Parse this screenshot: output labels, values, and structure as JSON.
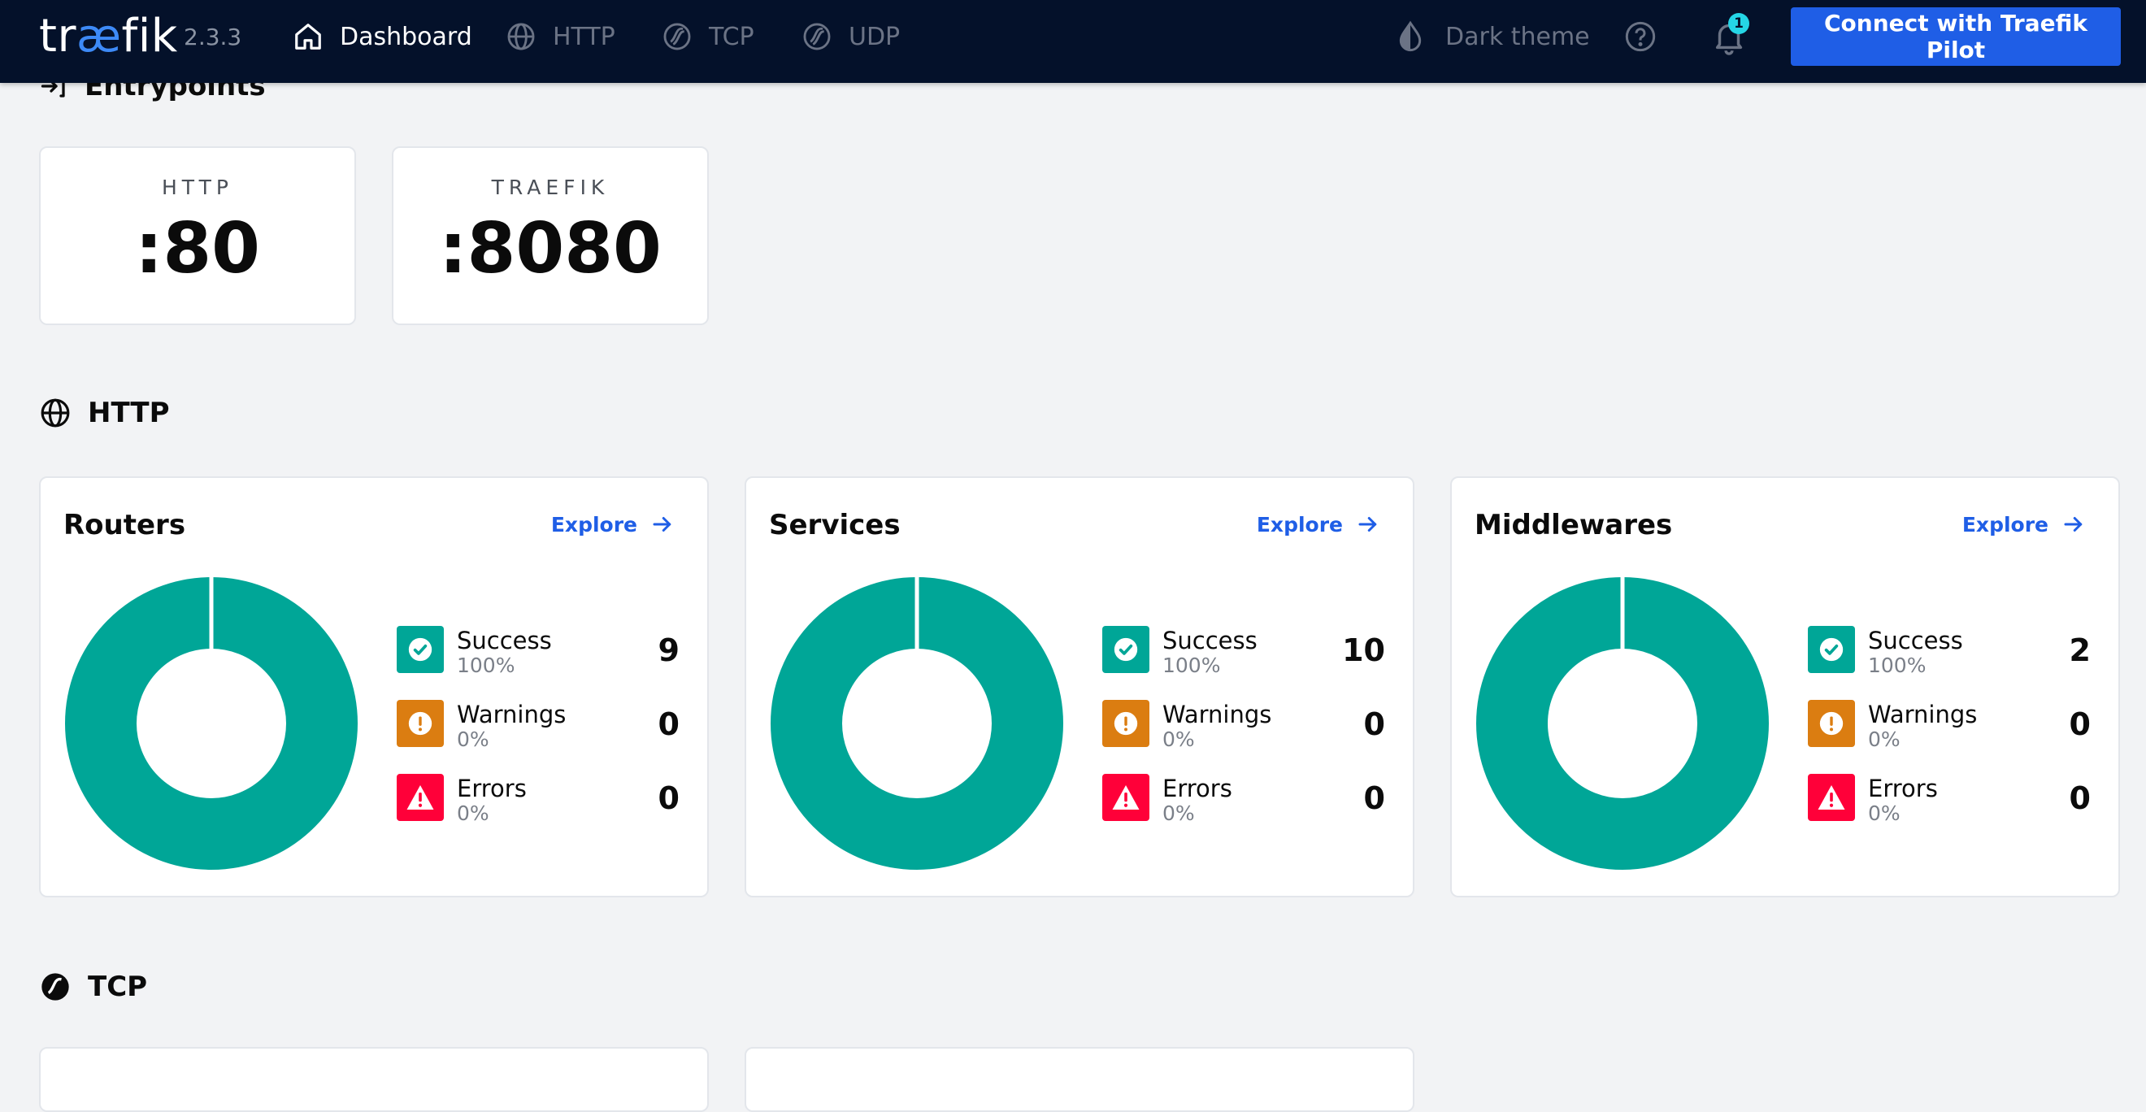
{
  "header": {
    "logo_prefix": "tr",
    "logo_ae": "æ",
    "logo_suffix": "fik",
    "version": "2.3.3",
    "nav": {
      "dashboard": "Dashboard",
      "http": "HTTP",
      "tcp": "TCP",
      "udp": "UDP"
    },
    "theme_label": "Dark theme",
    "notification_count": "1",
    "pilot_button": "Connect with Traefik Pilot"
  },
  "entrypoints": {
    "title": "Entrypoints",
    "items": [
      {
        "name": "HTTP",
        "port": ":80"
      },
      {
        "name": "TRAEFIK",
        "port": ":8080"
      }
    ]
  },
  "http": {
    "title": "HTTP",
    "explore_label": "Explore",
    "cards": [
      {
        "title": "Routers",
        "success": {
          "label": "Success",
          "pct": "100%",
          "count": "9"
        },
        "warnings": {
          "label": "Warnings",
          "pct": "0%",
          "count": "0"
        },
        "errors": {
          "label": "Errors",
          "pct": "0%",
          "count": "0"
        }
      },
      {
        "title": "Services",
        "success": {
          "label": "Success",
          "pct": "100%",
          "count": "10"
        },
        "warnings": {
          "label": "Warnings",
          "pct": "0%",
          "count": "0"
        },
        "errors": {
          "label": "Errors",
          "pct": "0%",
          "count": "0"
        }
      },
      {
        "title": "Middlewares",
        "success": {
          "label": "Success",
          "pct": "100%",
          "count": "2"
        },
        "warnings": {
          "label": "Warnings",
          "pct": "0%",
          "count": "0"
        },
        "errors": {
          "label": "Errors",
          "pct": "0%",
          "count": "0"
        }
      }
    ]
  },
  "tcp": {
    "title": "TCP"
  },
  "colors": {
    "topbar": "#04112a",
    "accent": "#1f5ee6",
    "success": "#00a697",
    "warning": "#db7d11",
    "error": "#ff0039"
  },
  "icons": {
    "dashboard": "home-icon",
    "http": "globe-icon",
    "tcp": "tcp-icon",
    "udp": "udp-icon",
    "theme": "drop-icon",
    "help": "help-icon",
    "notifications": "bell-icon",
    "entrypoints": "login-arrow-icon",
    "explore": "arrow-right-icon"
  }
}
